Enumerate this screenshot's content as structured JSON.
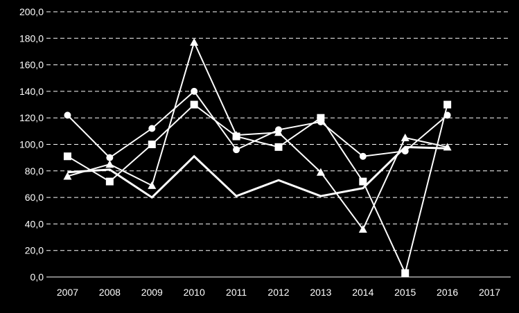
{
  "chart_data": {
    "type": "line",
    "title": "",
    "xlabel": "",
    "ylabel": "",
    "categories": [
      "2007",
      "2008",
      "2009",
      "2010",
      "2011",
      "2012",
      "2013",
      "2014",
      "2015",
      "2016",
      "2017"
    ],
    "y_tick_labels": [
      "0,0",
      "20,0",
      "40,0",
      "60,0",
      "80,0",
      "100,0",
      "120,0",
      "140,0",
      "160,0",
      "180,0",
      "200,0"
    ],
    "ylim": [
      0,
      200
    ],
    "grid": "horizontal dashed",
    "legend": "none",
    "series": [
      {
        "marker": "circle",
        "values": [
          122,
          90,
          112,
          140,
          96,
          111,
          117,
          91,
          95,
          122,
          null
        ]
      },
      {
        "marker": "square",
        "values": [
          91,
          72,
          100,
          130,
          106,
          98,
          120,
          72,
          3,
          130,
          null
        ]
      },
      {
        "marker": "triangle",
        "values": [
          76,
          85,
          69,
          177,
          107,
          109,
          79,
          36,
          105,
          98,
          null
        ]
      },
      {
        "marker": "none",
        "line_style": "bold",
        "values": [
          79,
          81,
          60,
          91,
          61,
          73,
          61,
          67,
          98,
          97,
          null
        ]
      }
    ],
    "colors": {
      "background": "#000000",
      "foreground": "#ffffff"
    }
  }
}
